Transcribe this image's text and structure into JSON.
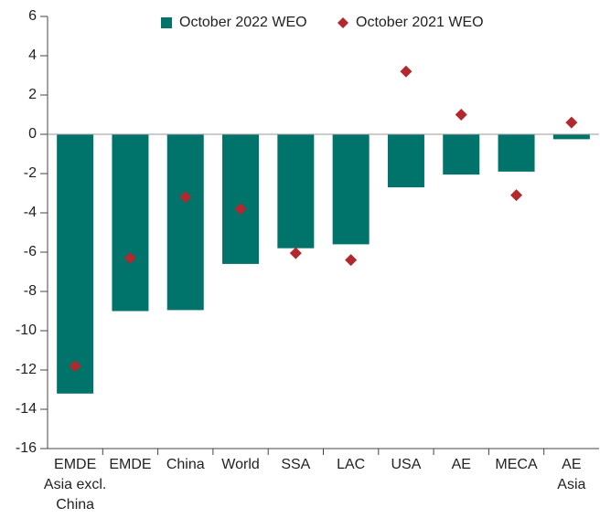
{
  "chart_data": {
    "type": "bar",
    "categories": [
      "EMDE\nAsia excl.\nChina",
      "EMDE",
      "China",
      "World",
      "SSA",
      "LAC",
      "USA",
      "AE",
      "MECA",
      "AE\nAsia"
    ],
    "series": [
      {
        "name": "October 2022 WEO",
        "type": "bar",
        "color": "#00736a",
        "values": [
          -13.2,
          -9.0,
          -8.95,
          -6.6,
          -5.8,
          -5.6,
          -2.7,
          -2.05,
          -1.9,
          -0.25
        ]
      },
      {
        "name": "October 2021 WEO",
        "type": "scatter",
        "color": "#b3282d",
        "values": [
          -11.8,
          -6.3,
          -3.2,
          -3.8,
          -6.05,
          -6.4,
          3.2,
          1.0,
          -3.1,
          0.6
        ]
      }
    ],
    "ylim": [
      -16,
      6
    ],
    "yticks": [
      6,
      4,
      2,
      0,
      -2,
      -4,
      -6,
      -8,
      -10,
      -12,
      -14,
      -16
    ]
  }
}
